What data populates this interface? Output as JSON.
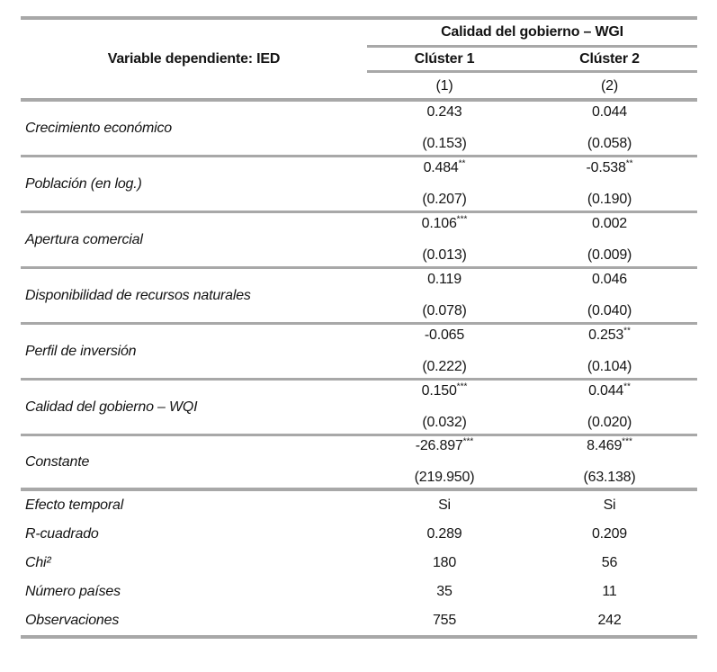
{
  "table": {
    "header": {
      "dependent_variable": "Variable dependiente: IED",
      "group_title": "Calidad del gobierno – WGI",
      "clusters": [
        "Clúster 1",
        "Clúster 2"
      ],
      "model_numbers": [
        "(1)",
        "(2)"
      ]
    },
    "coefficient_rows": [
      {
        "label": "Crecimiento económico",
        "coef1": "0.243",
        "stars1": "",
        "se1": "(0.153)",
        "coef2": "0.044",
        "stars2": "",
        "se2": "(0.058)"
      },
      {
        "label": "Población (en log.)",
        "coef1": "0.484",
        "stars1": "**",
        "se1": "(0.207)",
        "coef2": "-0.538",
        "stars2": "**",
        "se2": "(0.190)"
      },
      {
        "label": "Apertura comercial",
        "coef1": "0.106",
        "stars1": "***",
        "se1": "(0.013)",
        "coef2": "0.002",
        "stars2": "",
        "se2": "(0.009)"
      },
      {
        "label": "Disponibilidad de recursos naturales",
        "coef1": "0.119",
        "stars1": "",
        "se1": "(0.078)",
        "coef2": "0.046",
        "stars2": "",
        "se2": "(0.040)"
      },
      {
        "label": "Perfil de inversión",
        "coef1": "-0.065",
        "stars1": "",
        "se1": "(0.222)",
        "coef2": "0.253",
        "stars2": "**",
        "se2": "(0.104)"
      },
      {
        "label": "Calidad del gobierno – WQI",
        "coef1": "0.150",
        "stars1": "***",
        "se1": "(0.032)",
        "coef2": "0.044",
        "stars2": "**",
        "se2": "(0.020)"
      },
      {
        "label": "Constante",
        "coef1": "-26.897",
        "stars1": "***",
        "se1": "(219.950)",
        "coef2": "8.469",
        "stars2": "***",
        "se2": "(63.138)"
      }
    ],
    "summary_rows": [
      {
        "label": "Efecto temporal",
        "v1": "Si",
        "v2": "Si"
      },
      {
        "label": "R-cuadrado",
        "v1": "0.289",
        "v2": "0.209"
      },
      {
        "label": "Chi²",
        "v1": "180",
        "v2": "56"
      },
      {
        "label": "Número países",
        "v1": "35",
        "v2": "11"
      },
      {
        "label": "Observaciones",
        "v1": "755",
        "v2": "242"
      }
    ],
    "colors": {
      "rule": "#a8a8a8",
      "text": "#141414"
    }
  }
}
